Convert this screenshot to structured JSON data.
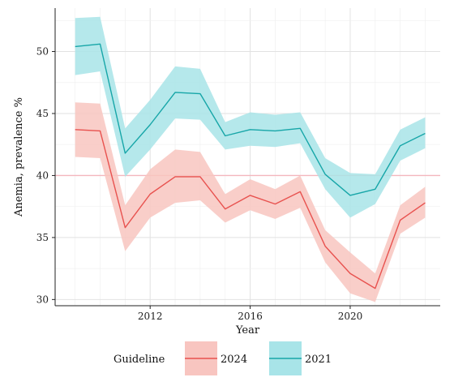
{
  "chart_data": {
    "type": "line",
    "xlabel": "Year",
    "ylabel": "Anemia, prevalence %",
    "xlim": [
      2008.2,
      2023.6
    ],
    "ylim": [
      29.5,
      53.5
    ],
    "x_ticks": [
      2012,
      2016,
      2020
    ],
    "y_ticks": [
      30,
      35,
      40,
      45,
      50
    ],
    "grid": true,
    "reference_line": {
      "y": 40,
      "color": "#f4b6bd"
    },
    "legend": {
      "title": "Guideline",
      "position": "bottom"
    },
    "series": [
      {
        "name": "2024",
        "color": "#e8524f",
        "band_color": "#f8c5c0",
        "x": [
          2009,
          2010,
          2011,
          2012,
          2013,
          2014,
          2015,
          2016,
          2017,
          2018,
          2019,
          2020,
          2021,
          2022,
          2023
        ],
        "values": [
          43.7,
          43.6,
          35.8,
          38.5,
          39.9,
          39.9,
          37.3,
          38.4,
          37.7,
          38.7,
          34.3,
          32.1,
          30.9,
          36.4,
          37.8
        ],
        "lower": [
          41.5,
          41.4,
          33.9,
          36.6,
          37.8,
          38.0,
          36.2,
          37.2,
          36.5,
          37.4,
          33.0,
          30.5,
          29.8,
          35.3,
          36.6
        ],
        "upper": [
          45.9,
          45.8,
          37.6,
          40.5,
          42.1,
          41.9,
          38.5,
          39.7,
          38.9,
          40.0,
          35.6,
          33.8,
          32.1,
          37.6,
          39.1
        ]
      },
      {
        "name": "2021",
        "color": "#17a6a8",
        "band_color": "#a8e4e8",
        "x": [
          2009,
          2010,
          2011,
          2012,
          2013,
          2014,
          2015,
          2016,
          2017,
          2018,
          2019,
          2020,
          2021,
          2022,
          2023
        ],
        "values": [
          50.4,
          50.6,
          41.8,
          44.1,
          46.7,
          46.6,
          43.2,
          43.7,
          43.6,
          43.8,
          40.1,
          38.4,
          38.9,
          42.4,
          43.4
        ],
        "lower": [
          48.1,
          48.4,
          39.9,
          42.1,
          44.6,
          44.5,
          42.1,
          42.4,
          42.3,
          42.6,
          38.9,
          36.6,
          37.7,
          41.2,
          42.2
        ],
        "upper": [
          52.7,
          52.8,
          43.8,
          46.1,
          48.8,
          48.6,
          44.3,
          45.1,
          44.9,
          45.1,
          41.4,
          40.2,
          40.1,
          43.7,
          44.7
        ]
      }
    ]
  }
}
